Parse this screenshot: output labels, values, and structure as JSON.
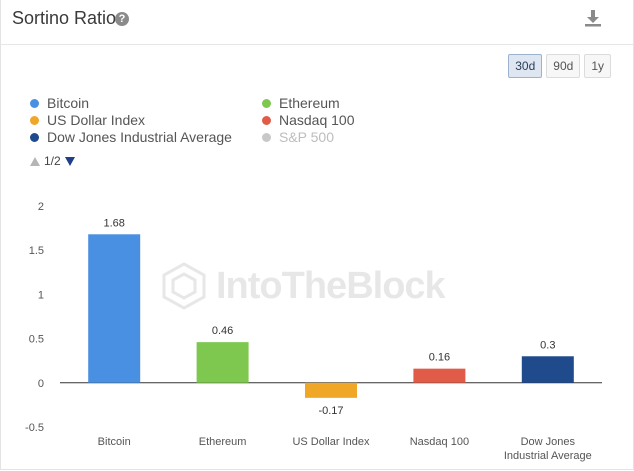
{
  "header": {
    "title": "Sortino Ratio"
  },
  "icons": {
    "help": "question-circle-icon",
    "download": "download-icon"
  },
  "range": [
    {
      "label": "30d",
      "active": true
    },
    {
      "label": "90d",
      "active": false
    },
    {
      "label": "1y",
      "active": false
    }
  ],
  "legend": [
    {
      "label": "Bitcoin",
      "color": "#4a90e2",
      "enabled": true
    },
    {
      "label": "Ethereum",
      "color": "#7ec850",
      "enabled": true
    },
    {
      "label": "US Dollar Index",
      "color": "#f0a626",
      "enabled": true
    },
    {
      "label": "Nasdaq 100",
      "color": "#e05c48",
      "enabled": true
    },
    {
      "label": "Dow Jones Industrial Average",
      "color": "#1f4a8c",
      "enabled": true
    },
    {
      "label": "S&P 500",
      "color": "#c8c8c8",
      "enabled": false
    }
  ],
  "legend_pager": "1/2",
  "watermark": "IntoTheBlock",
  "chart_data": {
    "type": "bar",
    "categories": [
      "Bitcoin",
      "Ethereum",
      "US Dollar Index",
      "Nasdaq 100",
      "Dow Jones Industrial Average"
    ],
    "category_lines": [
      [
        "Bitcoin"
      ],
      [
        "Ethereum"
      ],
      [
        "US Dollar Index"
      ],
      [
        "Nasdaq 100"
      ],
      [
        "Dow Jones",
        "Industrial Average"
      ]
    ],
    "values": [
      1.68,
      0.46,
      -0.17,
      0.16,
      0.3
    ],
    "colors": [
      "#4a90e2",
      "#7ec850",
      "#f0a626",
      "#e05c48",
      "#1f4a8c"
    ],
    "ylim": [
      -0.5,
      2
    ],
    "yticks": [
      "2",
      "1.5",
      "1",
      "0.5",
      "0",
      "-0.5"
    ],
    "title": "",
    "xlabel": "",
    "ylabel": "",
    "grid": false
  }
}
